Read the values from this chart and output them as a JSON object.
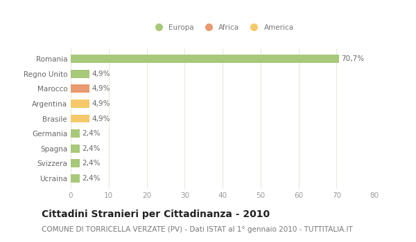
{
  "categories": [
    "Ucraina",
    "Svizzera",
    "Spagna",
    "Germania",
    "Brasile",
    "Argentina",
    "Marocco",
    "Regno Unito",
    "Romania"
  ],
  "values": [
    2.4,
    2.4,
    2.4,
    2.4,
    4.9,
    4.9,
    4.9,
    4.9,
    70.7
  ],
  "colors": [
    "#a8c87a",
    "#a8c87a",
    "#a8c87a",
    "#a8c87a",
    "#f5c96a",
    "#f5c96a",
    "#e89a70",
    "#a8c87a",
    "#a8c87a"
  ],
  "labels": [
    "2,4%",
    "2,4%",
    "2,4%",
    "2,4%",
    "4,9%",
    "4,9%",
    "4,9%",
    "4,9%",
    "70,7%"
  ],
  "legend": [
    {
      "label": "Europa",
      "color": "#a8c87a"
    },
    {
      "label": "Africa",
      "color": "#e89a70"
    },
    {
      "label": "America",
      "color": "#f5c96a"
    }
  ],
  "xlim": [
    0,
    80
  ],
  "xticks": [
    0,
    10,
    20,
    30,
    40,
    50,
    60,
    70,
    80
  ],
  "title": "Cittadini Stranieri per Cittadinanza - 2010",
  "subtitle": "COMUNE DI TORRICELLA VERZATE (PV) - Dati ISTAT al 1° gennaio 2010 - TUTTITALIA.IT",
  "title_fontsize": 10,
  "subtitle_fontsize": 7.5,
  "label_fontsize": 7.5,
  "tick_fontsize": 7.5,
  "bg_color": "#ffffff",
  "grid_color": "#e8e8dc"
}
